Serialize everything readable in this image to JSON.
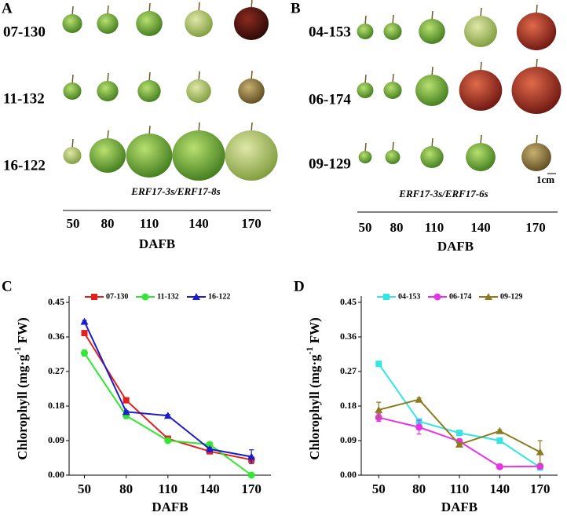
{
  "panels": [
    {
      "letter": "A",
      "rows": [
        "07-130",
        "11-132",
        "16-122"
      ],
      "caption": "ERF17-3s/ERF17-8s",
      "columns": [
        "50",
        "80",
        "110",
        "140",
        "170"
      ],
      "axis_label": "DAFB"
    },
    {
      "letter": "B",
      "rows": [
        "04-153",
        "06-174",
        "09-129"
      ],
      "caption": "ERF17-3s/ERF17-6s",
      "columns": [
        "50",
        "80",
        "110",
        "140",
        "170"
      ],
      "axis_label": "DAFB",
      "scale_label": "1cm"
    }
  ],
  "chart_data": [
    {
      "type": "line",
      "panel_label": "C",
      "x_label": "DAFB",
      "y_label_parts": [
        "Chlorophyll (mg·g",
        "-1",
        " FW)"
      ],
      "x": [
        50,
        80,
        110,
        140,
        170
      ],
      "xlim": [
        39,
        184
      ],
      "xticks": [
        50,
        80,
        110,
        140,
        170
      ],
      "ylim": [
        0,
        0.45
      ],
      "yticks": [
        {
          "value": 0,
          "label": "0.00"
        },
        0.09,
        0.18,
        0.27,
        0.36,
        0.45
      ],
      "series": [
        {
          "name": "07-130",
          "color": "#e3201c",
          "marker": "square",
          "values": [
            0.37,
            0.195,
            0.095,
            0.062,
            0.04
          ],
          "errors": [
            0.006,
            0.004,
            0.005,
            0.004,
            0.006
          ]
        },
        {
          "name": "11-132",
          "color": "#33e633",
          "marker": "circle",
          "values": [
            0.318,
            0.155,
            0.09,
            0.08,
            0
          ],
          "errors": [
            0.008,
            0.008,
            0.005,
            0.004,
            0
          ]
        },
        {
          "name": "16-122",
          "color": "#1c1cc8",
          "marker": "triangle",
          "values": [
            0.4,
            0.165,
            0.155,
            0.068,
            0.048
          ],
          "errors": [
            0.003,
            0.003,
            0.003,
            0.004,
            0.018
          ]
        }
      ]
    },
    {
      "type": "line",
      "panel_label": "D",
      "x_label": "DAFB",
      "y_label_parts": [
        "Chlorophyll (mg·g",
        "-1",
        " FW)"
      ],
      "x": [
        50,
        80,
        110,
        140,
        170
      ],
      "xlim": [
        37,
        183
      ],
      "xticks": [
        50,
        80,
        110,
        140,
        170
      ],
      "ylim": [
        0,
        0.45
      ],
      "yticks": [
        {
          "value": 0,
          "label": "0.00"
        },
        0.09,
        0.18,
        0.27,
        0.36,
        0.45
      ],
      "series": [
        {
          "name": "04-153",
          "color": "#33e6e6",
          "marker": "square",
          "values": [
            0.29,
            0.14,
            0.11,
            0.09,
            0.02
          ],
          "errors": [
            0.003,
            0.004,
            0.003,
            0.002,
            0.005
          ]
        },
        {
          "name": "06-174",
          "color": "#e633e6",
          "marker": "circle",
          "values": [
            0.15,
            0.125,
            0.088,
            0.022,
            0.023
          ],
          "errors": [
            0.01,
            0.018,
            0.004,
            0.002,
            0.002
          ]
        },
        {
          "name": "09-129",
          "color": "#8c7a1e",
          "marker": "triangle",
          "values": [
            0.17,
            0.197,
            0.08,
            0.115,
            0.06
          ],
          "errors": [
            0.02,
            0.004,
            0.004,
            0.003,
            0.03
          ]
        }
      ]
    }
  ]
}
